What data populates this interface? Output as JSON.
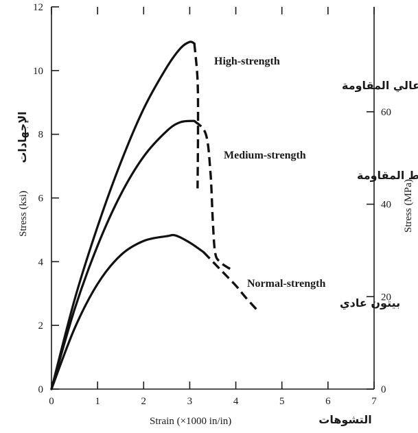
{
  "chart_data": {
    "type": "line",
    "xlabel": "Strain (×1000 in/in)",
    "xlabel_ar": "التشوهات",
    "ylabel_left": "Stress (ksi)",
    "ylabel_left_ar": "الإجهادات",
    "ylabel_right": "Stress (MPa)",
    "xlim": [
      0,
      7
    ],
    "ylim_left": [
      0,
      12
    ],
    "ylim_right": [
      0,
      82.7
    ],
    "x_ticks": [
      0,
      1,
      2,
      3,
      4,
      5,
      6,
      7
    ],
    "y_left_ticks": [
      0,
      2,
      4,
      6,
      8,
      10,
      12
    ],
    "y_right_ticks": [
      0,
      20,
      40,
      60
    ],
    "grid": false,
    "series": [
      {
        "name": "High-strength",
        "name_ar": "بيتون عالي المقاومة",
        "solid": [
          [
            0,
            0
          ],
          [
            0.5,
            2.8
          ],
          [
            1.0,
            5.1
          ],
          [
            1.5,
            7.1
          ],
          [
            2.0,
            8.8
          ],
          [
            2.5,
            10.1
          ],
          [
            2.8,
            10.7
          ],
          [
            3.0,
            10.9
          ],
          [
            3.1,
            10.85
          ]
        ],
        "dashed": [
          [
            3.1,
            10.85
          ],
          [
            3.17,
            9.7
          ],
          [
            3.18,
            8.2
          ],
          [
            3.17,
            6.3
          ]
        ]
      },
      {
        "name": "Medium-strength",
        "name_ar": "بيتون متوسط المقاومة",
        "solid": [
          [
            0,
            0
          ],
          [
            0.5,
            2.5
          ],
          [
            1.0,
            4.5
          ],
          [
            1.5,
            6.1
          ],
          [
            2.0,
            7.3
          ],
          [
            2.5,
            8.1
          ],
          [
            2.8,
            8.38
          ],
          [
            3.1,
            8.42
          ]
        ],
        "dashed": [
          [
            3.1,
            8.42
          ],
          [
            3.35,
            8.0
          ],
          [
            3.45,
            6.8
          ],
          [
            3.5,
            5.3
          ],
          [
            3.55,
            4.3
          ],
          [
            3.65,
            4.0
          ],
          [
            3.9,
            3.75
          ]
        ]
      },
      {
        "name": "Normal-strength",
        "name_ar": "بيتون عادي",
        "solid": [
          [
            0,
            0
          ],
          [
            0.5,
            1.9
          ],
          [
            1.0,
            3.3
          ],
          [
            1.5,
            4.2
          ],
          [
            2.0,
            4.65
          ],
          [
            2.5,
            4.8
          ],
          [
            2.7,
            4.82
          ],
          [
            3.0,
            4.6
          ],
          [
            3.3,
            4.3
          ]
        ],
        "dashed": [
          [
            3.3,
            4.3
          ],
          [
            3.7,
            3.7
          ],
          [
            4.0,
            3.25
          ],
          [
            4.2,
            2.9
          ],
          [
            4.45,
            2.5
          ]
        ]
      }
    ]
  }
}
